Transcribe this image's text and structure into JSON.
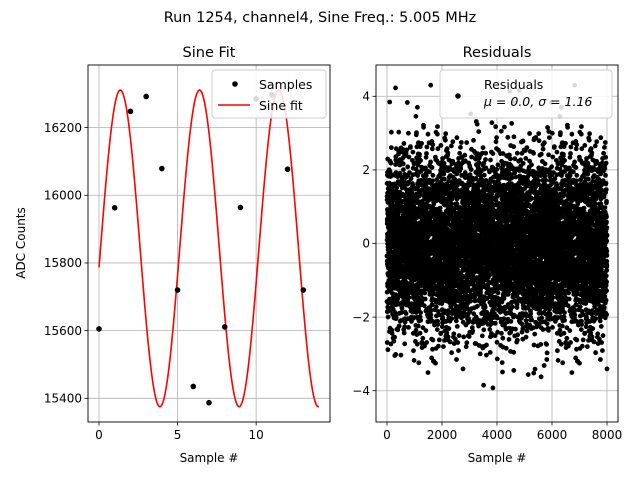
{
  "suptitle": "Run 1254, channel4, Sine Freq.: 5.005 MHz",
  "chart_data": [
    {
      "type": "line",
      "title": "Sine Fit",
      "xlabel": "Sample #",
      "ylabel": "ADC Counts",
      "xlim": [
        -0.7,
        14.7
      ],
      "ylim": [
        15330,
        16385
      ],
      "xticks": [
        0,
        5,
        10
      ],
      "yticks": [
        15400,
        15600,
        15800,
        16000,
        16200
      ],
      "grid": true,
      "legend_position": "upper-right",
      "series": [
        {
          "name": "Samples",
          "kind": "scatter",
          "color": "#000000",
          "x": [
            0,
            1,
            2,
            3,
            4,
            5,
            6,
            7,
            8,
            9,
            10,
            11,
            12,
            13
          ],
          "y": [
            15605,
            15963,
            16248,
            16292,
            16079,
            15720,
            15435,
            15387,
            15611,
            15964,
            16285,
            16297,
            16077,
            15720
          ]
        },
        {
          "name": "Sine fit",
          "kind": "line",
          "color": "#ff0000",
          "function": "A*sin(2*pi*f*x + phi) + C",
          "params": {
            "A": 468,
            "C": 15843,
            "f": 0.1984,
            "phi": -0.1195
          },
          "x_range": [
            0,
            14
          ]
        }
      ]
    },
    {
      "type": "scatter",
      "title": "Residuals",
      "xlabel": "Sample #",
      "ylabel": "",
      "xlim": [
        -400,
        8400
      ],
      "ylim": [
        -4.85,
        4.85
      ],
      "xticks": [
        0,
        2000,
        4000,
        6000,
        8000
      ],
      "yticks": [
        -4,
        -2,
        0,
        2,
        4
      ],
      "grid": true,
      "legend_position": "upper-right",
      "legend": {
        "name": "Residuals",
        "stats": "μ = 0.0, σ = 1.16"
      },
      "series": [
        {
          "name": "Residuals",
          "kind": "scatter",
          "color": "#000000",
          "n_points": 8000,
          "mean": 0.0,
          "std": 1.16,
          "x_range": [
            0,
            8000
          ]
        }
      ]
    }
  ]
}
